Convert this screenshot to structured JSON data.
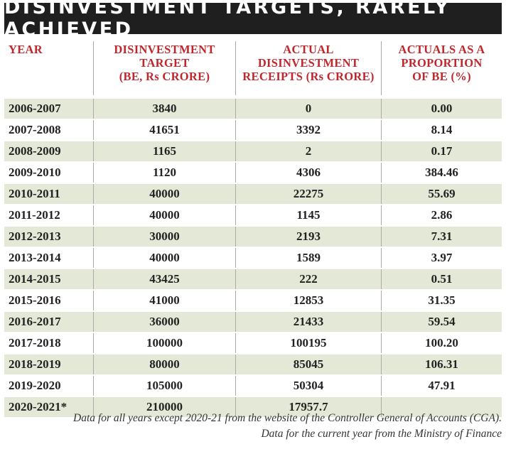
{
  "title": "DISINVESTMENT TARGETS, RARELY ACHIEVED",
  "headers": {
    "year": "YEAR",
    "target_l1": "DISINVESTMENT",
    "target_l2": "TARGET",
    "target_l3": "(BE, Rs CRORE)",
    "actual_l1": "ACTUAL",
    "actual_l2": "DISINVESTMENT",
    "actual_l3": "RECEIPTS (Rs CRORE)",
    "prop_l1": "ACTUALS AS A",
    "prop_l2": "PROPORTION",
    "prop_l3": "OF BE (%)"
  },
  "rows": [
    {
      "year": "2006-2007",
      "target": "3840",
      "actual": "0",
      "proportion": "0.00"
    },
    {
      "year": "2007-2008",
      "target": "41651",
      "actual": "3392",
      "proportion": "8.14"
    },
    {
      "year": "2008-2009",
      "target": "1165",
      "actual": "2",
      "proportion": "0.17"
    },
    {
      "year": "2009-2010",
      "target": "1120",
      "actual": "4306",
      "proportion": "384.46"
    },
    {
      "year": "2010-2011",
      "target": "40000",
      "actual": "22275",
      "proportion": "55.69"
    },
    {
      "year": "2011-2012",
      "target": "40000",
      "actual": "1145",
      "proportion": "2.86"
    },
    {
      "year": "2012-2013",
      "target": "30000",
      "actual": "2193",
      "proportion": "7.31"
    },
    {
      "year": "2013-2014",
      "target": "40000",
      "actual": "1589",
      "proportion": "3.97"
    },
    {
      "year": "2014-2015",
      "target": "43425",
      "actual": "222",
      "proportion": "0.51"
    },
    {
      "year": "2015-2016",
      "target": "41000",
      "actual": "12853",
      "proportion": "31.35"
    },
    {
      "year": "2016-2017",
      "target": "36000",
      "actual": "21433",
      "proportion": "59.54"
    },
    {
      "year": "2017-2018",
      "target": "100000",
      "actual": "100195",
      "proportion": "100.20"
    },
    {
      "year": "2018-2019",
      "target": "80000",
      "actual": "85045",
      "proportion": "106.31"
    },
    {
      "year": "2019-2020",
      "target": "105000",
      "actual": "50304",
      "proportion": "47.91"
    },
    {
      "year": "2020-2021*",
      "target": "210000",
      "actual": "17957.7",
      "proportion": ""
    }
  ],
  "footer": {
    "line1": "Data for all years except 2020-21 from the website of the Controller General of Accounts (CGA).",
    "line2": "Data for the current year from the Ministry of Finance"
  },
  "colors": {
    "title_bg": "#1f1f1f",
    "header_text": "#c0272d",
    "row_shade": "#e4e8d6"
  },
  "chart_data": {
    "type": "table",
    "title": "DISINVESTMENT TARGETS, RARELY ACHIEVED",
    "columns": [
      "YEAR",
      "DISINVESTMENT TARGET (BE, Rs CRORE)",
      "ACTUAL DISINVESTMENT RECEIPTS (Rs CRORE)",
      "ACTUALS AS A PROPORTION OF BE (%)"
    ],
    "rows": [
      [
        "2006-2007",
        3840,
        0,
        0.0
      ],
      [
        "2007-2008",
        41651,
        3392,
        8.14
      ],
      [
        "2008-2009",
        1165,
        2,
        0.17
      ],
      [
        "2009-2010",
        1120,
        4306,
        384.46
      ],
      [
        "2010-2011",
        40000,
        22275,
        55.69
      ],
      [
        "2011-2012",
        40000,
        1145,
        2.86
      ],
      [
        "2012-2013",
        30000,
        2193,
        7.31
      ],
      [
        "2013-2014",
        40000,
        1589,
        3.97
      ],
      [
        "2014-2015",
        43425,
        222,
        0.51
      ],
      [
        "2015-2016",
        41000,
        12853,
        31.35
      ],
      [
        "2016-2017",
        36000,
        21433,
        59.54
      ],
      [
        "2017-2018",
        100000,
        100195,
        100.2
      ],
      [
        "2018-2019",
        80000,
        85045,
        106.31
      ],
      [
        "2019-2020",
        105000,
        50304,
        47.91
      ],
      [
        "2020-2021*",
        210000,
        17957.7,
        null
      ]
    ]
  }
}
